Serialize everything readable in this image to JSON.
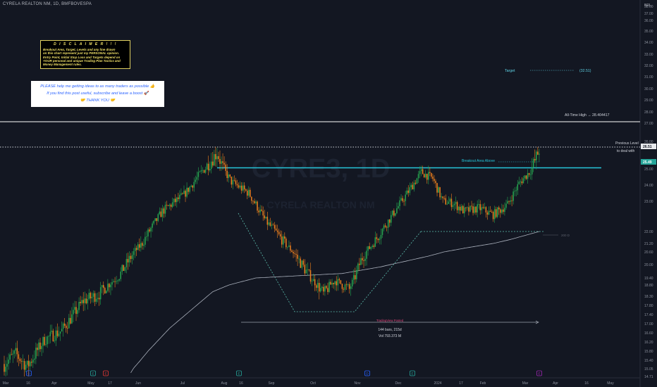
{
  "header": {
    "title": "CYRELA REALTON NM, 1D, BMFBOVESPA",
    "currency": "BRL"
  },
  "disclaimer": {
    "title": "D I S C L A I M E R  ! ! !",
    "lines": [
      "Breakout Area, Target, Levels and any line drawn",
      "on this chart represent just my PERSONAL opinion.",
      "Entry Point, Initial Stop Loss and Targets depend on",
      "YOUR personal and unique Trading Plan Tactics and",
      "Money Management rules."
    ]
  },
  "promo": {
    "line1": "PLEASE help me getting ideas to as many traders as possible",
    "line1_emoji": "👍",
    "line2": "If you find this post useful, subscribe and leave a boost",
    "line2_emoji": "🚀",
    "line3": "THANK YOU",
    "line3_emoji": "🤝"
  },
  "annotations": {
    "target_label": "Target",
    "target_value": "(32.51)",
    "ath_label": "All-Time High → 28.404417",
    "prev_level_1": "Previous Level",
    "prev_level_2": "to deal with",
    "breakout_label": "Breakout Area Above",
    "ma_label": "200 D",
    "range_label": "TradingView Posted",
    "bars_label": "144 bars, 215d",
    "vol_label": "Vol 793.373 M"
  },
  "watermark": {
    "big": "CYRE3, 1D",
    "small": "CYRELA REALTON NM"
  },
  "colors": {
    "bg": "#131722",
    "up": "#26a650",
    "down": "#f0801d",
    "breakout": "#26c6da",
    "target": "#5fd3e6",
    "white_line": "#ffffff",
    "pattern": "#5ec0b0",
    "ma": "#aab0bc"
  },
  "chart_data": {
    "type": "candlestick",
    "ylim": [
      14.5,
      38.5
    ],
    "y_ticks": [
      "38.00",
      "37.00",
      "36.00",
      "35.00",
      "34.00",
      "33.00",
      "32.00",
      "31.00",
      "30.00",
      "29.00",
      "28.00",
      "27.00",
      "26.00",
      "25.00",
      "24.00",
      "23.00",
      "22.00",
      "21.20",
      "20.60",
      "20.00",
      "19.40",
      "18.80",
      "18.30",
      "17.80",
      "17.40",
      "17.00",
      "16.60",
      "16.20",
      "15.80",
      "15.40",
      "15.05",
      "14.71"
    ],
    "x_ticks": [
      "Mar",
      "16",
      "Apr",
      "May",
      "17",
      "Jun",
      "Jul",
      "Aug",
      "16",
      "Sep",
      "Oct",
      "Nov",
      "Dec",
      "2024",
      "17",
      "Feb",
      "Mar",
      "Apr",
      "16",
      "May"
    ],
    "price_tags": [
      {
        "value": "26.51",
        "kind": "previous"
      },
      {
        "value": "25.49",
        "kind": "last"
      }
    ],
    "levels": {
      "all_time_high": 28.404417,
      "previous_level": 26.51,
      "breakout": 25.3,
      "target": 32.51,
      "neckline": 21.4,
      "pattern_low": 17.05
    },
    "keypoints": [
      [
        0,
        14.9
      ],
      [
        8,
        15.3
      ],
      [
        16,
        14.8
      ],
      [
        28,
        15.9
      ],
      [
        40,
        16.3
      ],
      [
        55,
        17.6
      ],
      [
        66,
        17.9
      ],
      [
        80,
        18.9
      ],
      [
        96,
        20.6
      ],
      [
        110,
        22.4
      ],
      [
        125,
        23.4
      ],
      [
        138,
        24.9
      ],
      [
        148,
        25.6
      ],
      [
        158,
        24.2
      ],
      [
        170,
        23.5
      ],
      [
        182,
        21.8
      ],
      [
        195,
        20.6
      ],
      [
        205,
        19.6
      ],
      [
        215,
        18.6
      ],
      [
        222,
        17.9
      ],
      [
        230,
        18.6
      ],
      [
        240,
        18.1
      ],
      [
        248,
        19.6
      ],
      [
        262,
        21.2
      ],
      [
        278,
        23.2
      ],
      [
        290,
        24.8
      ],
      [
        298,
        24.4
      ],
      [
        305,
        23.0
      ],
      [
        312,
        22.9
      ],
      [
        320,
        22.4
      ],
      [
        330,
        22.6
      ],
      [
        340,
        22.2
      ],
      [
        350,
        22.8
      ],
      [
        358,
        24.1
      ],
      [
        366,
        24.9
      ],
      [
        372,
        25.7
      ]
    ],
    "ma_keypoints": [
      [
        88,
        14.6
      ],
      [
        115,
        16.4
      ],
      [
        145,
        18.0
      ],
      [
        175,
        18.8
      ],
      [
        205,
        18.9
      ],
      [
        235,
        19.0
      ],
      [
        262,
        19.3
      ],
      [
        295,
        19.8
      ],
      [
        322,
        20.3
      ],
      [
        352,
        20.8
      ],
      [
        372,
        21.2
      ]
    ],
    "markers": [
      {
        "label": "D"
      },
      {
        "label": "E"
      },
      {
        "label": "E"
      },
      {
        "label": "E"
      },
      {
        "label": "D"
      },
      {
        "label": "E"
      },
      {
        "label": "E"
      }
    ]
  }
}
